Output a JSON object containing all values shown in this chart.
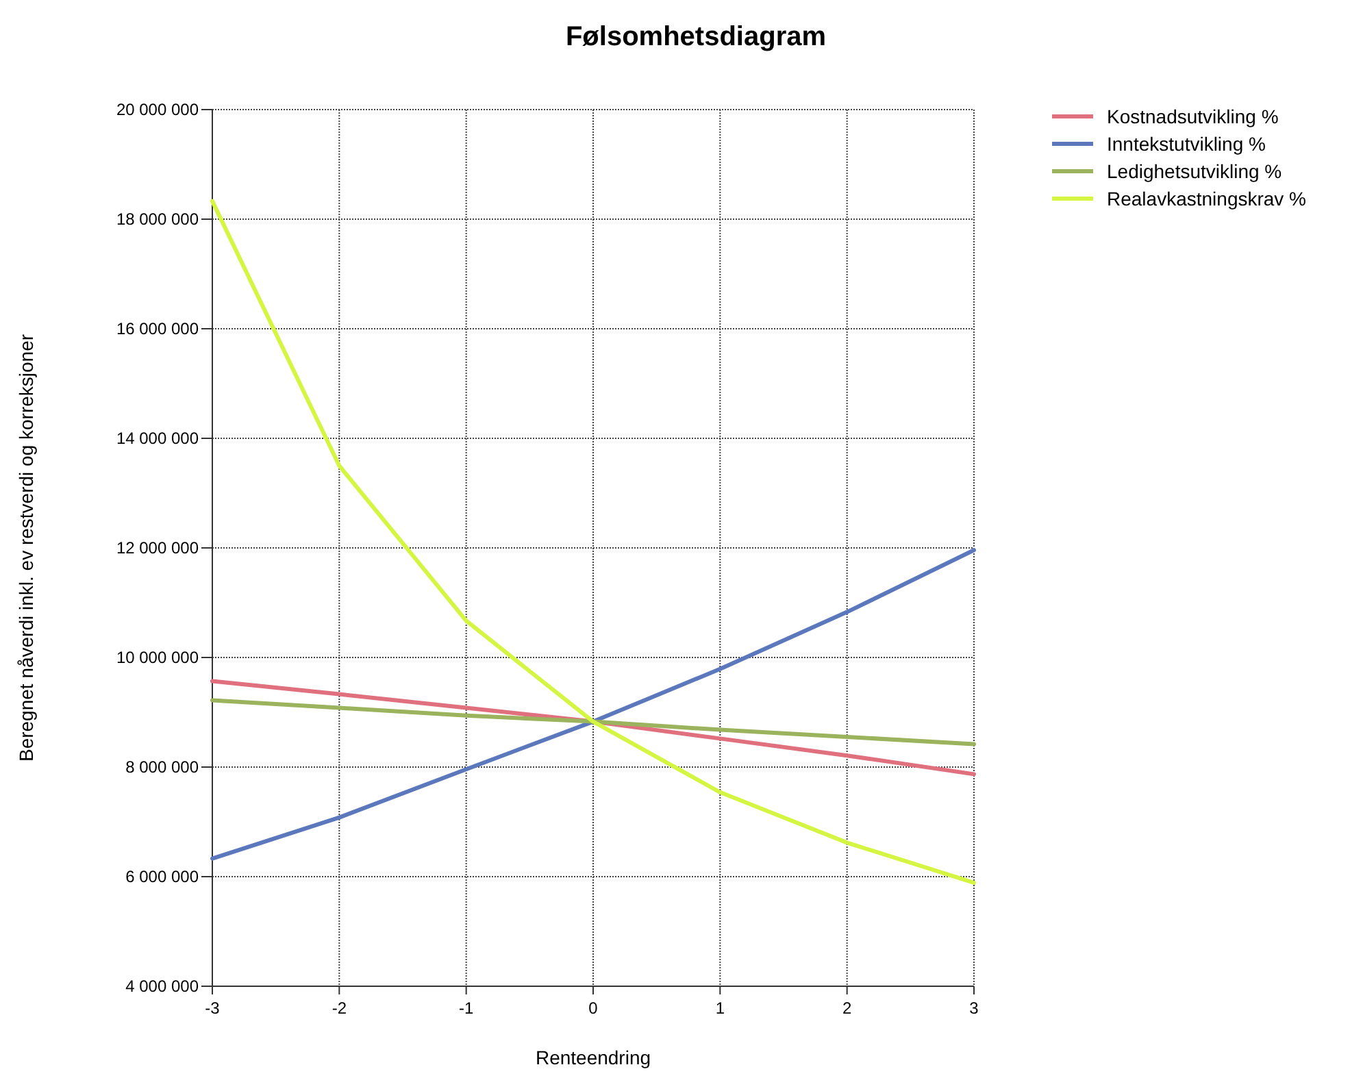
{
  "chart_data": {
    "type": "line",
    "title": "Følsomhetsdiagram",
    "xlabel": "Renteendring",
    "ylabel": "Beregnet nåverdi inkl. ev restverdi og korreksjoner",
    "x": [
      -3,
      -2,
      -1,
      0,
      1,
      2,
      3
    ],
    "series": [
      {
        "name": "Kostnadsutvikling %",
        "color": "#e0707e",
        "values": [
          9570000,
          9330000,
          9080000,
          8830000,
          8520000,
          8210000,
          7870000
        ]
      },
      {
        "name": "Inntekstutvikling %",
        "color": "#5b78bd",
        "values": [
          6330000,
          7080000,
          7960000,
          8830000,
          9790000,
          10830000,
          11960000
        ]
      },
      {
        "name": "Ledighetsutvikling %",
        "color": "#9bb35c",
        "values": [
          9220000,
          9080000,
          8940000,
          8830000,
          8680000,
          8550000,
          8420000
        ]
      },
      {
        "name": "Realavkastningskrav %",
        "color": "#d4f542",
        "values": [
          18330000,
          13500000,
          10670000,
          8830000,
          7540000,
          6620000,
          5890000
        ]
      }
    ],
    "xlim": [
      -3,
      3
    ],
    "xticks": [
      -3,
      -2,
      -1,
      0,
      1,
      2,
      3
    ],
    "ylim": [
      4000000,
      20000000
    ],
    "yticks": [
      {
        "value": 4000000,
        "label": "4 000 000"
      },
      {
        "value": 6000000,
        "label": "6 000 000"
      },
      {
        "value": 8000000,
        "label": "8 000 000"
      },
      {
        "value": 10000000,
        "label": "10 000 000"
      },
      {
        "value": 12000000,
        "label": "12 000 000"
      },
      {
        "value": 14000000,
        "label": "14 000 000"
      },
      {
        "value": 16000000,
        "label": "16 000 000"
      },
      {
        "value": 18000000,
        "label": "18 000 000"
      },
      {
        "value": 20000000,
        "label": "20 000 000"
      }
    ],
    "grid": true,
    "legend": "top right",
    "marker": "none",
    "line_style": "solid"
  }
}
